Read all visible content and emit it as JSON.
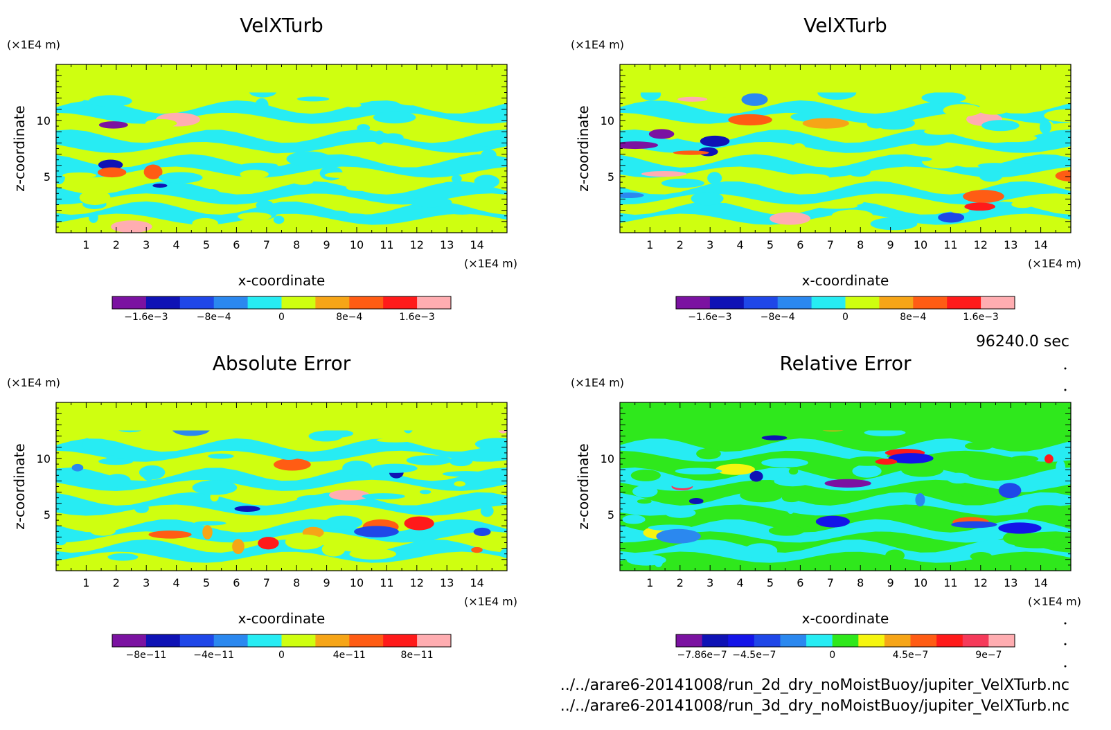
{
  "chart_data": [
    {
      "type": "heatmap",
      "title": "VelXTurb",
      "xlabel": "x-coordinate",
      "ylabel": "z-coordinate",
      "x_unit": "(×1E4 m)",
      "y_unit": "(×1E4 m)",
      "xlim": [
        0,
        15
      ],
      "ylim": [
        0,
        15
      ],
      "x_ticks": [
        "1",
        "2",
        "3",
        "4",
        "5",
        "6",
        "7",
        "8",
        "9",
        "10",
        "11",
        "12",
        "13",
        "14"
      ],
      "y_ticks": [
        "5",
        "10"
      ],
      "colorbar": {
        "colors": [
          "#7b12a1",
          "#0f12b5",
          "#1f47e8",
          "#2b88ef",
          "#27ecf3",
          "#cfff10",
          "#f6a517",
          "#ff5c14",
          "#ff1a1a",
          "#ffadb1"
        ],
        "labels": [
          "−1.6e−3",
          "−8e−4",
          "0",
          "8e−4",
          "1.6e−3"
        ]
      },
      "background_color": "#cfff10",
      "band_color": "#27ecf3"
    },
    {
      "type": "heatmap",
      "title": "VelXTurb",
      "xlabel": "x-coordinate",
      "ylabel": "z-coordinate",
      "x_unit": "(×1E4 m)",
      "y_unit": "(×1E4 m)",
      "xlim": [
        0,
        15
      ],
      "ylim": [
        0,
        15
      ],
      "x_ticks": [
        "1",
        "2",
        "3",
        "4",
        "5",
        "6",
        "7",
        "8",
        "9",
        "10",
        "11",
        "12",
        "13",
        "14"
      ],
      "y_ticks": [
        "5",
        "10"
      ],
      "colorbar": {
        "colors": [
          "#7b12a1",
          "#0f12b5",
          "#1f47e8",
          "#2b88ef",
          "#27ecf3",
          "#cfff10",
          "#f6a517",
          "#ff5c14",
          "#ff1a1a",
          "#ffadb1"
        ],
        "labels": [
          "−1.6e−3",
          "−8e−4",
          "0",
          "8e−4",
          "1.6e−3"
        ]
      },
      "background_color": "#cfff10",
      "band_color": "#27ecf3"
    },
    {
      "type": "heatmap",
      "title": "Absolute Error",
      "xlabel": "x-coordinate",
      "ylabel": "z-coordinate",
      "x_unit": "(×1E4 m)",
      "y_unit": "(×1E4 m)",
      "xlim": [
        0,
        15
      ],
      "ylim": [
        0,
        15
      ],
      "x_ticks": [
        "1",
        "2",
        "3",
        "4",
        "5",
        "6",
        "7",
        "8",
        "9",
        "10",
        "11",
        "12",
        "13",
        "14"
      ],
      "y_ticks": [
        "5",
        "10"
      ],
      "colorbar": {
        "colors": [
          "#7b12a1",
          "#0f12b5",
          "#1f47e8",
          "#2b88ef",
          "#27ecf3",
          "#cfff10",
          "#f6a517",
          "#ff5c14",
          "#ff1a1a",
          "#ffadb1"
        ],
        "labels": [
          "−8e−11",
          "−4e−11",
          "0",
          "4e−11",
          "8e−11"
        ]
      },
      "background_color": "#cfff10",
      "band_color": "#27ecf3"
    },
    {
      "type": "heatmap",
      "title": "Relative Error",
      "xlabel": "x-coordinate",
      "ylabel": "z-coordinate",
      "x_unit": "(×1E4 m)",
      "y_unit": "(×1E4 m)",
      "xlim": [
        0,
        15
      ],
      "ylim": [
        0,
        15
      ],
      "x_ticks": [
        "1",
        "2",
        "3",
        "4",
        "5",
        "6",
        "7",
        "8",
        "9",
        "10",
        "11",
        "12",
        "13",
        "14"
      ],
      "y_ticks": [
        "5",
        "10"
      ],
      "colorbar": {
        "colors": [
          "#7b12a1",
          "#0f12b5",
          "#1414e8",
          "#1f47e8",
          "#2b88ef",
          "#27ecf3",
          "#2fe81c",
          "#f5f50f",
          "#f6a517",
          "#ff5c14",
          "#ff1a1a",
          "#f53a5a",
          "#ffadb1"
        ],
        "labels": [
          "−7.86e−7",
          "−4.5e−7",
          "0",
          "4.5e−7",
          "9e−7"
        ]
      },
      "background_color": "#2fe81c",
      "band_color": "#27ecf3"
    }
  ],
  "time_label": "96240.0 sec",
  "files": [
    "../../arare6-20141008/run_2d_dry_noMoistBuoy/jupiter_VelXTurb.nc",
    "../../arare6-20141008/run_3d_dry_noMoistBuoy/jupiter_VelXTurb.nc"
  ]
}
